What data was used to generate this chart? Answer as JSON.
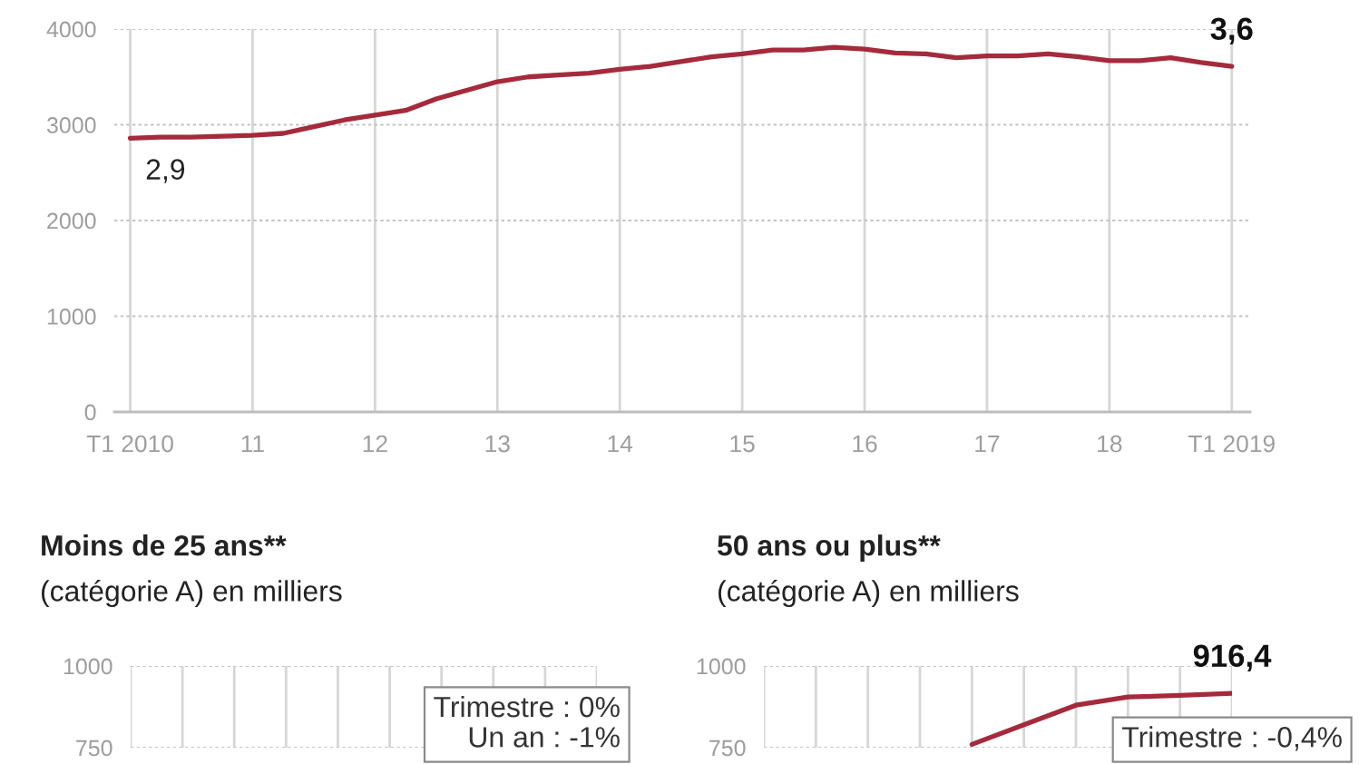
{
  "chart_data": [
    {
      "type": "line",
      "x": [
        2010,
        2010.25,
        2010.5,
        2010.75,
        2011,
        2011.25,
        2011.5,
        2011.75,
        2012,
        2012.25,
        2012.5,
        2012.75,
        2013,
        2013.25,
        2013.5,
        2013.75,
        2014,
        2014.25,
        2014.5,
        2014.75,
        2015,
        2015.25,
        2015.5,
        2015.75,
        2016,
        2016.25,
        2016.5,
        2016.75,
        2017,
        2017.25,
        2017.5,
        2017.75,
        2018,
        2018.25,
        2018.5,
        2018.75,
        2019
      ],
      "series": [
        {
          "color": "#a52a3c",
          "values": [
            2860,
            2870,
            2870,
            2880,
            2890,
            2910,
            2980,
            3050,
            3100,
            3150,
            3270,
            3360,
            3450,
            3500,
            3520,
            3540,
            3580,
            3610,
            3660,
            3710,
            3740,
            3780,
            3780,
            3810,
            3790,
            3750,
            3740,
            3700,
            3720,
            3720,
            3740,
            3710,
            3670,
            3670,
            3700,
            3650,
            3610
          ]
        }
      ],
      "xlim": [
        2009.87,
        2019.15
      ],
      "xticks": [
        {
          "value": 2010,
          "label": "T1 2010"
        },
        {
          "value": 2011,
          "label": "11"
        },
        {
          "value": 2012,
          "label": "12"
        },
        {
          "value": 2013,
          "label": "13"
        },
        {
          "value": 2014,
          "label": "14"
        },
        {
          "value": 2015,
          "label": "15"
        },
        {
          "value": 2016,
          "label": "16"
        },
        {
          "value": 2017,
          "label": "17"
        },
        {
          "value": 2018,
          "label": "18"
        },
        {
          "value": 2019,
          "label": "T1 2019"
        }
      ],
      "ylim": [
        0,
        4000
      ],
      "yticks": [
        0,
        1000,
        2000,
        3000,
        4000
      ],
      "grid": true,
      "annotations": [
        {
          "text": "2,9",
          "x": 2010,
          "y": 2860
        },
        {
          "text": "3,6",
          "x": 2019,
          "y": 3610
        }
      ]
    },
    {
      "type": "line",
      "title": "Moins de 25 ans**",
      "subtitle": "(catégorie A) en milliers",
      "categories": [
        null,
        null,
        null,
        null,
        null,
        null,
        null,
        null,
        null,
        null
      ],
      "values": [
        null,
        null,
        null,
        null,
        null,
        null,
        null,
        null,
        null,
        null
      ],
      "ylim": [
        750,
        1000
      ],
      "yticks": [
        750,
        1000
      ],
      "tick_labels": "y",
      "grid": true,
      "annotations": [
        "Trimestre : 0%\nUn an : -1%"
      ]
    },
    {
      "type": "line",
      "title": "50 ans ou plus**",
      "subtitle": "(catégorie A) en milliers",
      "categories": [
        null,
        null,
        null,
        null,
        null,
        null,
        null,
        null,
        null,
        null
      ],
      "series": [
        {
          "color": "#a52a3c",
          "values": [
            null,
            null,
            null,
            null,
            760,
            820,
            880,
            905,
            910,
            916.4
          ],
          "value_labels": [
            null,
            null,
            null,
            null,
            null,
            null,
            null,
            null,
            null,
            "916,4"
          ]
        }
      ],
      "ylim": [
        750,
        1000
      ],
      "yticks": [
        750,
        1000
      ],
      "tick_labels": "y",
      "grid": true,
      "annotations": [
        "Trimestre : -0,4%"
      ]
    }
  ]
}
